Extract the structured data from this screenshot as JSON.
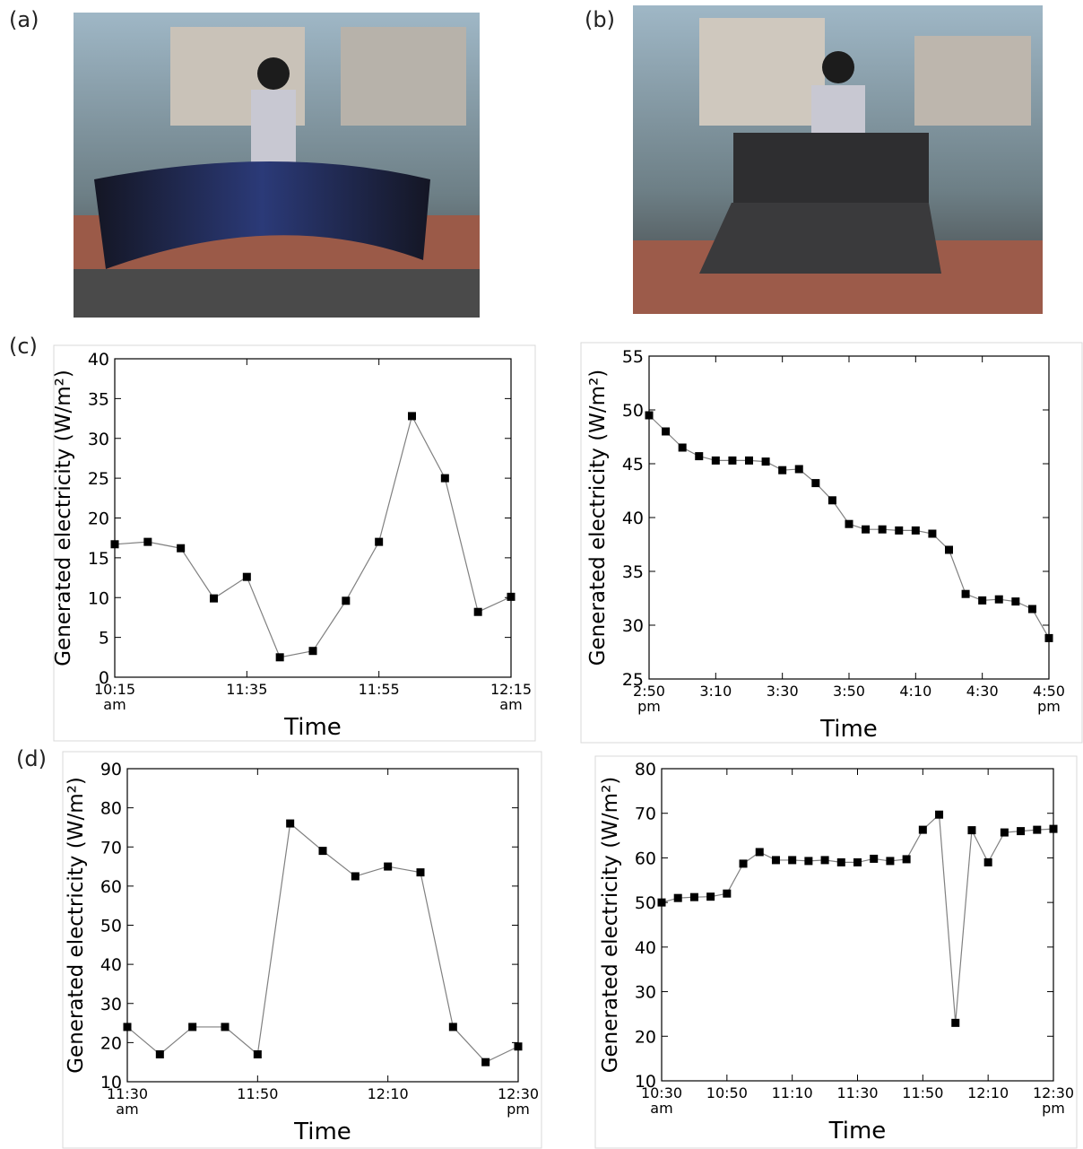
{
  "panel_labels": [
    "(a)",
    "(b)",
    "(c)",
    "(d)"
  ],
  "chart_data": [
    {
      "type": "line",
      "xlabel": "Time",
      "ylabel": "Generated electricity (W/m²)",
      "color": "#000000",
      "line_color": "#808080",
      "categories": [
        "10:15 am",
        null,
        null,
        null,
        "11:35",
        null,
        null,
        null,
        "11:55",
        null,
        null,
        null,
        "12:15 am"
      ],
      "values": [
        16.7,
        17,
        16.2,
        9.9,
        12.6,
        2.5,
        3.3,
        9.6,
        17,
        32.8,
        25,
        8.2,
        10.1
      ],
      "ylim": [
        0,
        40
      ],
      "yticks": [
        0,
        5,
        10,
        15,
        20,
        25,
        30,
        35,
        40
      ]
    },
    {
      "type": "line",
      "xlabel": "Time",
      "ylabel": "Generated electricity (W/m²)",
      "color": "#000000",
      "line_color": "#808080",
      "categories": [
        "2:50 pm",
        null,
        null,
        null,
        "3:10",
        null,
        null,
        null,
        "3:30",
        null,
        null,
        null,
        "3:50",
        null,
        null,
        null,
        "4:10",
        null,
        null,
        null,
        "4:30",
        null,
        null,
        null,
        "4:50 pm"
      ],
      "values": [
        49.5,
        48,
        46.5,
        45.7,
        45.3,
        45.3,
        45.3,
        45.2,
        44.4,
        44.5,
        43.2,
        41.6,
        39.4,
        38.9,
        38.9,
        38.8,
        38.8,
        38.5,
        37,
        32.9,
        32.3,
        32.4,
        32.2,
        31.5,
        28.8
      ],
      "ylim": [
        25,
        55
      ],
      "yticks": [
        25,
        30,
        35,
        40,
        45,
        50,
        55
      ]
    },
    {
      "type": "line",
      "xlabel": "Time",
      "ylabel": "Generated electricity (W/m²)",
      "color": "#000000",
      "line_color": "#808080",
      "categories": [
        "11:30 am",
        null,
        null,
        null,
        "11:50",
        null,
        null,
        null,
        "12:10",
        null,
        null,
        null,
        "12:30 pm"
      ],
      "values": [
        24,
        17,
        24,
        24,
        17,
        76,
        69,
        62.5,
        65,
        63.5,
        24,
        15,
        19
      ],
      "ylim": [
        10,
        90
      ],
      "yticks": [
        10,
        20,
        30,
        40,
        50,
        60,
        70,
        80,
        90
      ]
    },
    {
      "type": "line",
      "xlabel": "Time",
      "ylabel": "Generated electricity (W/m²)",
      "color": "#000000",
      "line_color": "#808080",
      "categories": [
        "10:30 am",
        null,
        null,
        null,
        "10:50",
        null,
        null,
        null,
        "11:10",
        null,
        null,
        null,
        "11:30",
        null,
        null,
        null,
        "11:50",
        null,
        null,
        null,
        "12:10",
        null,
        null,
        null,
        "12:30 pm"
      ],
      "values": [
        50,
        51,
        51.2,
        51.3,
        52,
        58.7,
        61.3,
        59.5,
        59.5,
        59.3,
        59.5,
        59,
        59,
        59.8,
        59.3,
        59.7,
        66.3,
        69.7,
        23,
        66.2,
        59,
        65.7,
        66,
        66.3,
        66.5
      ],
      "ylim": [
        10,
        80
      ],
      "yticks": [
        10,
        20,
        30,
        40,
        50,
        60,
        70,
        80
      ]
    }
  ]
}
